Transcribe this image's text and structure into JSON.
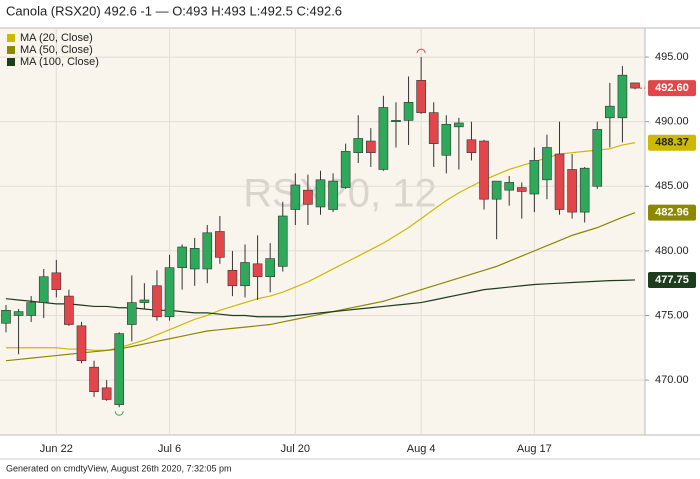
{
  "chart_data": {
    "type": "candlestick",
    "title": "Canola (RSX20) 492.6 -1 — O:493 H:493 L:492.5 C:492.6",
    "watermark": "RSX20, 12",
    "footer": "Generated on cmdtyView, August 26th 2020, 7:32:05 pm",
    "categories": [
      null,
      null,
      null,
      null,
      "Jun 22",
      null,
      null,
      null,
      null,
      null,
      null,
      null,
      null,
      "Jul 6",
      null,
      null,
      null,
      null,
      null,
      null,
      null,
      null,
      null,
      "Jul 20",
      null,
      null,
      null,
      null,
      null,
      null,
      null,
      null,
      null,
      "Aug 4",
      null,
      null,
      null,
      null,
      null,
      null,
      null,
      null,
      "Aug 17",
      null,
      null,
      null,
      null,
      null,
      null,
      null,
      null
    ],
    "open": [
      474.4,
      475.0,
      475.0,
      476.0,
      478.3,
      476.5,
      474.2,
      471.0,
      469.4,
      468.1,
      474.3,
      476.0,
      477.3,
      474.9,
      478.7,
      478.6,
      478.6,
      481.5,
      478.5,
      477.3,
      479.0,
      478.0,
      478.8,
      483.2,
      484.7,
      483.4,
      483.2,
      484.9,
      487.6,
      488.5,
      486.3,
      490.0,
      490.1,
      493.2,
      490.7,
      487.4,
      489.6,
      488.6,
      488.5,
      484.0,
      484.7,
      484.9,
      484.4,
      485.5,
      487.5,
      486.3,
      483.0,
      485.0,
      490.3,
      490.3,
      493
    ],
    "high": [
      475.8,
      475.5,
      476.5,
      478.6,
      479.3,
      477.0,
      474.5,
      471.5,
      470.0,
      473.7,
      478.1,
      477.5,
      478.5,
      479.7,
      480.5,
      481.0,
      482.0,
      482.7,
      480.0,
      480.5,
      481.2,
      480.6,
      483.8,
      486.0,
      485.9,
      486.2,
      486.0,
      488.3,
      490.5,
      489.5,
      492.0,
      491.5,
      493.5,
      495.0,
      491.5,
      490.5,
      490.3,
      490.0,
      488.6,
      485.3,
      485.8,
      485.3,
      488.0,
      489.0,
      490.0,
      487.5,
      486.5,
      490.0,
      493.0,
      494.3,
      493
    ],
    "low": [
      473.7,
      472.0,
      474.5,
      474.8,
      476.4,
      474.2,
      471.3,
      468.7,
      468.4,
      467.9,
      473.0,
      475.5,
      474.6,
      474.6,
      477.0,
      477.3,
      477.5,
      479.0,
      476.5,
      476.4,
      476.2,
      476.8,
      478.4,
      482.0,
      482.0,
      482.8,
      483.0,
      484.8,
      486.8,
      486.5,
      486.2,
      488.0,
      488.2,
      490.6,
      486.5,
      486.0,
      486.3,
      487.0,
      483.2,
      480.9,
      483.5,
      482.5,
      483.0,
      484.0,
      482.8,
      482.5,
      482.2,
      484.8,
      488.0,
      488.4,
      492.5
    ],
    "close": [
      475.4,
      475.3,
      476.0,
      478.0,
      477.0,
      474.3,
      471.5,
      469.1,
      468.5,
      473.6,
      476.0,
      476.2,
      474.9,
      478.7,
      480.3,
      480.2,
      481.4,
      479.5,
      477.3,
      479.1,
      478.0,
      479.4,
      482.7,
      485.1,
      483.6,
      485.5,
      485.4,
      487.7,
      488.7,
      487.6,
      491.1,
      490.1,
      491.5,
      490.7,
      488.3,
      489.8,
      489.9,
      487.6,
      484.0,
      485.4,
      485.3,
      484.6,
      487.0,
      488.0,
      483.2,
      483.0,
      486.4,
      489.4,
      491.2,
      493.6,
      492.6
    ],
    "value_labels": [
      null,
      null,
      null,
      null,
      null,
      null,
      null,
      null,
      null,
      null,
      null,
      null,
      null,
      null,
      null,
      null,
      null,
      null,
      null,
      null,
      null,
      null,
      null,
      null,
      null,
      null,
      null,
      null,
      null,
      null,
      null,
      null,
      null,
      null,
      null,
      null,
      null,
      null,
      null,
      null,
      null,
      null,
      null,
      null,
      null,
      null,
      null,
      null,
      null,
      null,
      "492.60"
    ],
    "up_color": "#2ea85a",
    "down_color": "#e2464b",
    "series": [
      {
        "name": "MA (20, Close)",
        "color": "#cdb900",
        "values": [
          472.5,
          472.5,
          472.5,
          472.5,
          472.5,
          472.4,
          472.4,
          472.3,
          472.3,
          472.5,
          472.8,
          473.1,
          473.5,
          473.9,
          474.3,
          474.7,
          475.0,
          475.4,
          475.7,
          476.0,
          476.3,
          476.5,
          476.8,
          477.2,
          477.6,
          478.1,
          478.6,
          479.1,
          479.6,
          480.1,
          480.6,
          481.2,
          481.8,
          482.5,
          483.2,
          483.9,
          484.5,
          485.0,
          485.5,
          485.9,
          486.3,
          486.6,
          486.9,
          487.2,
          487.5,
          487.6,
          487.7,
          487.8,
          487.9,
          488.2,
          488.37
        ]
      },
      {
        "name": "MA (50, Close)",
        "color": "#8c8800",
        "values": [
          471.5,
          471.6,
          471.7,
          471.8,
          471.9,
          472.0,
          472.1,
          472.2,
          472.3,
          472.4,
          472.6,
          472.8,
          473.0,
          473.2,
          473.4,
          473.6,
          473.8,
          473.9,
          474.0,
          474.1,
          474.2,
          474.3,
          474.5,
          474.7,
          474.9,
          475.1,
          475.3,
          475.5,
          475.7,
          475.9,
          476.1,
          476.4,
          476.7,
          477.0,
          477.3,
          477.6,
          477.9,
          478.2,
          478.5,
          478.8,
          479.2,
          479.6,
          480.0,
          480.4,
          480.8,
          481.2,
          481.5,
          481.8,
          482.2,
          482.6,
          482.96
        ]
      },
      {
        "name": "MA (100, Close)",
        "color": "#1d3d1d",
        "values": [
          476.3,
          476.2,
          476.1,
          476.0,
          475.9,
          475.9,
          475.8,
          475.7,
          475.7,
          475.6,
          475.6,
          475.5,
          475.4,
          475.4,
          475.3,
          475.2,
          475.2,
          475.1,
          475.0,
          475.0,
          474.9,
          474.9,
          474.9,
          475.0,
          475.1,
          475.2,
          475.3,
          475.4,
          475.5,
          475.6,
          475.7,
          475.8,
          475.9,
          476.0,
          476.2,
          476.4,
          476.6,
          476.8,
          477.0,
          477.1,
          477.2,
          477.3,
          477.4,
          477.45,
          477.5,
          477.55,
          477.6,
          477.65,
          477.7,
          477.72,
          477.75
        ]
      }
    ],
    "ylim": [
      465.75,
      497.25
    ],
    "yticks": [
      {
        "value": 470,
        "label": "470.00"
      },
      {
        "value": 475,
        "label": "475.00"
      },
      {
        "value": 480,
        "label": "480.00"
      },
      {
        "value": 485,
        "label": "485.00"
      },
      {
        "value": 490,
        "label": "490.00"
      },
      {
        "value": 495,
        "label": "495.00"
      }
    ],
    "grid": true
  }
}
